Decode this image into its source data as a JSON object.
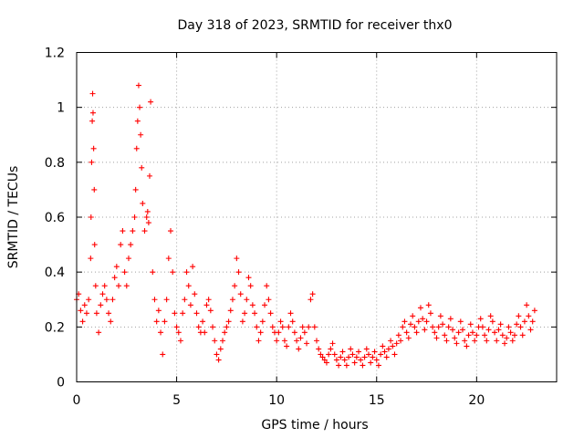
{
  "chart_data": {
    "type": "scatter",
    "title": "Day 318 of 2023, SRMTID for receiver thx0",
    "xlabel": "GPS time / hours",
    "ylabel": "SRMTID / TECUs",
    "xlim": [
      0,
      24
    ],
    "ylim": [
      0,
      1.2
    ],
    "grid": true,
    "marker": "plus",
    "color": "#ff0000",
    "xticks": [
      {
        "value": 0,
        "label": "0"
      },
      {
        "value": 5,
        "label": "5"
      },
      {
        "value": 10,
        "label": "10"
      },
      {
        "value": 15,
        "label": "15"
      },
      {
        "value": 20,
        "label": "20"
      }
    ],
    "yticks": [
      {
        "value": 0,
        "label": "0"
      },
      {
        "value": 0.2,
        "label": "0.2"
      },
      {
        "value": 0.4,
        "label": "0.4"
      },
      {
        "value": 0.6,
        "label": "0.6"
      },
      {
        "value": 0.8,
        "label": "0.8"
      },
      {
        "value": 1.0,
        "label": "1"
      },
      {
        "value": 1.2,
        "label": "1.2"
      }
    ],
    "series": [
      {
        "name": "SRMTID",
        "points": [
          [
            0.0,
            0.3
          ],
          [
            0.1,
            0.32
          ],
          [
            0.2,
            0.26
          ],
          [
            0.3,
            0.22
          ],
          [
            0.4,
            0.28
          ],
          [
            0.5,
            0.25
          ],
          [
            0.6,
            0.3
          ],
          [
            0.7,
            0.45
          ],
          [
            0.72,
            0.6
          ],
          [
            0.75,
            0.8
          ],
          [
            0.78,
            0.95
          ],
          [
            0.8,
            1.05
          ],
          [
            0.82,
            0.98
          ],
          [
            0.85,
            0.85
          ],
          [
            0.88,
            0.7
          ],
          [
            0.9,
            0.5
          ],
          [
            0.95,
            0.35
          ],
          [
            1.0,
            0.25
          ],
          [
            1.1,
            0.18
          ],
          [
            1.2,
            0.28
          ],
          [
            1.3,
            0.32
          ],
          [
            1.4,
            0.35
          ],
          [
            1.5,
            0.3
          ],
          [
            1.6,
            0.25
          ],
          [
            1.7,
            0.22
          ],
          [
            1.8,
            0.3
          ],
          [
            1.9,
            0.38
          ],
          [
            2.0,
            0.42
          ],
          [
            2.1,
            0.35
          ],
          [
            2.2,
            0.5
          ],
          [
            2.3,
            0.55
          ],
          [
            2.4,
            0.4
          ],
          [
            2.5,
            0.35
          ],
          [
            2.6,
            0.45
          ],
          [
            2.7,
            0.5
          ],
          [
            2.8,
            0.55
          ],
          [
            2.9,
            0.6
          ],
          [
            2.95,
            0.7
          ],
          [
            3.0,
            0.85
          ],
          [
            3.05,
            0.95
          ],
          [
            3.1,
            1.08
          ],
          [
            3.15,
            1.0
          ],
          [
            3.2,
            0.9
          ],
          [
            3.25,
            0.78
          ],
          [
            3.3,
            0.65
          ],
          [
            3.4,
            0.55
          ],
          [
            3.5,
            0.6
          ],
          [
            3.55,
            0.62
          ],
          [
            3.6,
            0.58
          ],
          [
            3.65,
            0.75
          ],
          [
            3.7,
            1.02
          ],
          [
            3.8,
            0.4
          ],
          [
            3.9,
            0.3
          ],
          [
            4.0,
            0.22
          ],
          [
            4.1,
            0.26
          ],
          [
            4.2,
            0.18
          ],
          [
            4.3,
            0.1
          ],
          [
            4.4,
            0.22
          ],
          [
            4.5,
            0.3
          ],
          [
            4.6,
            0.45
          ],
          [
            4.7,
            0.55
          ],
          [
            4.8,
            0.4
          ],
          [
            4.9,
            0.25
          ],
          [
            5.0,
            0.2
          ],
          [
            5.1,
            0.18
          ],
          [
            5.2,
            0.15
          ],
          [
            5.3,
            0.25
          ],
          [
            5.4,
            0.3
          ],
          [
            5.5,
            0.4
          ],
          [
            5.6,
            0.35
          ],
          [
            5.7,
            0.28
          ],
          [
            5.8,
            0.42
          ],
          [
            5.9,
            0.32
          ],
          [
            6.0,
            0.25
          ],
          [
            6.1,
            0.2
          ],
          [
            6.2,
            0.18
          ],
          [
            6.3,
            0.22
          ],
          [
            6.4,
            0.18
          ],
          [
            6.5,
            0.28
          ],
          [
            6.6,
            0.3
          ],
          [
            6.7,
            0.26
          ],
          [
            6.8,
            0.2
          ],
          [
            6.9,
            0.15
          ],
          [
            7.0,
            0.1
          ],
          [
            7.1,
            0.08
          ],
          [
            7.2,
            0.12
          ],
          [
            7.3,
            0.15
          ],
          [
            7.4,
            0.18
          ],
          [
            7.5,
            0.2
          ],
          [
            7.6,
            0.22
          ],
          [
            7.7,
            0.26
          ],
          [
            7.8,
            0.3
          ],
          [
            7.9,
            0.35
          ],
          [
            8.0,
            0.45
          ],
          [
            8.1,
            0.4
          ],
          [
            8.2,
            0.32
          ],
          [
            8.3,
            0.22
          ],
          [
            8.4,
            0.25
          ],
          [
            8.5,
            0.3
          ],
          [
            8.6,
            0.38
          ],
          [
            8.7,
            0.35
          ],
          [
            8.8,
            0.28
          ],
          [
            8.9,
            0.25
          ],
          [
            9.0,
            0.2
          ],
          [
            9.1,
            0.15
          ],
          [
            9.2,
            0.18
          ],
          [
            9.3,
            0.22
          ],
          [
            9.4,
            0.28
          ],
          [
            9.5,
            0.35
          ],
          [
            9.6,
            0.3
          ],
          [
            9.7,
            0.25
          ],
          [
            9.8,
            0.2
          ],
          [
            9.9,
            0.18
          ],
          [
            10.0,
            0.15
          ],
          [
            10.1,
            0.18
          ],
          [
            10.2,
            0.22
          ],
          [
            10.3,
            0.2
          ],
          [
            10.4,
            0.15
          ],
          [
            10.5,
            0.13
          ],
          [
            10.6,
            0.2
          ],
          [
            10.7,
            0.25
          ],
          [
            10.8,
            0.22
          ],
          [
            10.9,
            0.18
          ],
          [
            11.0,
            0.15
          ],
          [
            11.1,
            0.12
          ],
          [
            11.2,
            0.16
          ],
          [
            11.3,
            0.2
          ],
          [
            11.4,
            0.18
          ],
          [
            11.5,
            0.14
          ],
          [
            11.6,
            0.2
          ],
          [
            11.7,
            0.3
          ],
          [
            11.8,
            0.32
          ],
          [
            11.9,
            0.2
          ],
          [
            12.0,
            0.15
          ],
          [
            12.1,
            0.12
          ],
          [
            12.2,
            0.1
          ],
          [
            12.3,
            0.09
          ],
          [
            12.4,
            0.08
          ],
          [
            12.5,
            0.07
          ],
          [
            12.6,
            0.1
          ],
          [
            12.7,
            0.12
          ],
          [
            12.8,
            0.14
          ],
          [
            12.9,
            0.1
          ],
          [
            13.0,
            0.08
          ],
          [
            13.1,
            0.06
          ],
          [
            13.2,
            0.09
          ],
          [
            13.3,
            0.11
          ],
          [
            13.4,
            0.08
          ],
          [
            13.5,
            0.06
          ],
          [
            13.6,
            0.09
          ],
          [
            13.7,
            0.12
          ],
          [
            13.8,
            0.1
          ],
          [
            13.9,
            0.07
          ],
          [
            14.0,
            0.09
          ],
          [
            14.1,
            0.11
          ],
          [
            14.2,
            0.08
          ],
          [
            14.3,
            0.06
          ],
          [
            14.4,
            0.09
          ],
          [
            14.5,
            0.12
          ],
          [
            14.6,
            0.1
          ],
          [
            14.7,
            0.07
          ],
          [
            14.8,
            0.09
          ],
          [
            14.9,
            0.11
          ],
          [
            15.0,
            0.08
          ],
          [
            15.1,
            0.06
          ],
          [
            15.2,
            0.1
          ],
          [
            15.3,
            0.13
          ],
          [
            15.4,
            0.11
          ],
          [
            15.5,
            0.09
          ],
          [
            15.6,
            0.12
          ],
          [
            15.7,
            0.15
          ],
          [
            15.8,
            0.13
          ],
          [
            15.9,
            0.1
          ],
          [
            16.0,
            0.14
          ],
          [
            16.1,
            0.17
          ],
          [
            16.2,
            0.15
          ],
          [
            16.3,
            0.2
          ],
          [
            16.4,
            0.22
          ],
          [
            16.5,
            0.18
          ],
          [
            16.6,
            0.16
          ],
          [
            16.7,
            0.21
          ],
          [
            16.8,
            0.24
          ],
          [
            16.9,
            0.2
          ],
          [
            17.0,
            0.18
          ],
          [
            17.1,
            0.22
          ],
          [
            17.2,
            0.27
          ],
          [
            17.3,
            0.23
          ],
          [
            17.4,
            0.19
          ],
          [
            17.5,
            0.22
          ],
          [
            17.6,
            0.28
          ],
          [
            17.7,
            0.25
          ],
          [
            17.8,
            0.2
          ],
          [
            17.9,
            0.18
          ],
          [
            18.0,
            0.16
          ],
          [
            18.1,
            0.2
          ],
          [
            18.2,
            0.24
          ],
          [
            18.3,
            0.21
          ],
          [
            18.4,
            0.17
          ],
          [
            18.5,
            0.15
          ],
          [
            18.6,
            0.2
          ],
          [
            18.7,
            0.23
          ],
          [
            18.8,
            0.19
          ],
          [
            18.9,
            0.16
          ],
          [
            19.0,
            0.14
          ],
          [
            19.1,
            0.18
          ],
          [
            19.2,
            0.22
          ],
          [
            19.3,
            0.19
          ],
          [
            19.4,
            0.15
          ],
          [
            19.5,
            0.13
          ],
          [
            19.6,
            0.17
          ],
          [
            19.7,
            0.21
          ],
          [
            19.8,
            0.18
          ],
          [
            19.9,
            0.15
          ],
          [
            20.0,
            0.17
          ],
          [
            20.1,
            0.2
          ],
          [
            20.2,
            0.23
          ],
          [
            20.3,
            0.2
          ],
          [
            20.4,
            0.17
          ],
          [
            20.5,
            0.15
          ],
          [
            20.6,
            0.19
          ],
          [
            20.7,
            0.24
          ],
          [
            20.8,
            0.22
          ],
          [
            20.9,
            0.18
          ],
          [
            21.0,
            0.15
          ],
          [
            21.1,
            0.19
          ],
          [
            21.2,
            0.21
          ],
          [
            21.3,
            0.17
          ],
          [
            21.4,
            0.14
          ],
          [
            21.5,
            0.16
          ],
          [
            21.6,
            0.2
          ],
          [
            21.7,
            0.18
          ],
          [
            21.8,
            0.15
          ],
          [
            21.9,
            0.17
          ],
          [
            22.0,
            0.21
          ],
          [
            22.1,
            0.24
          ],
          [
            22.2,
            0.2
          ],
          [
            22.3,
            0.17
          ],
          [
            22.4,
            0.22
          ],
          [
            22.5,
            0.28
          ],
          [
            22.6,
            0.24
          ],
          [
            22.7,
            0.19
          ],
          [
            22.8,
            0.22
          ],
          [
            22.9,
            0.26
          ]
        ]
      }
    ]
  }
}
